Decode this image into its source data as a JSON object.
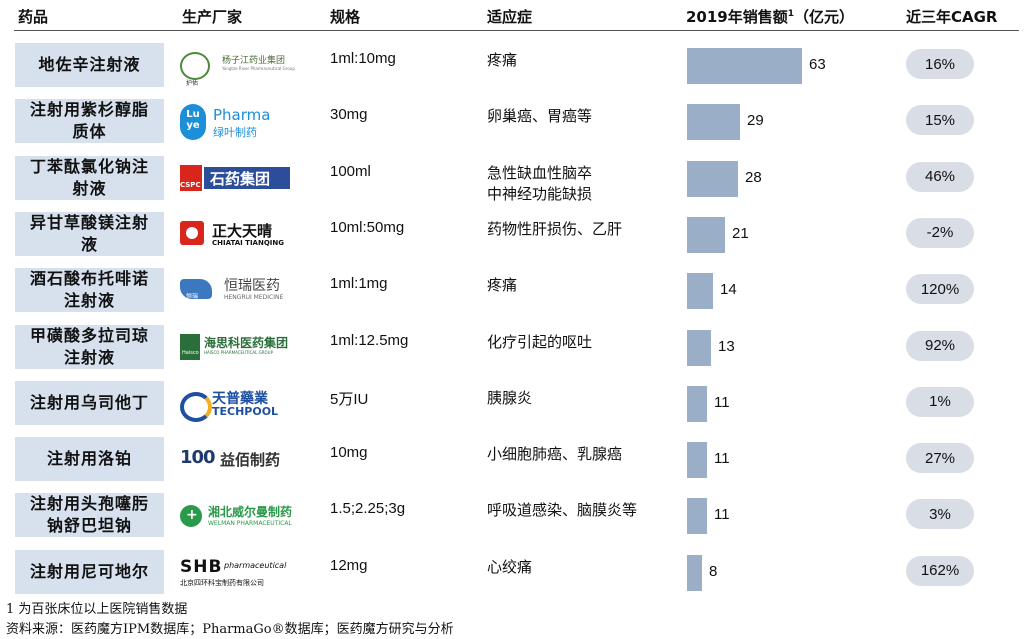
{
  "headers": {
    "drug": "药品",
    "maker": "生产厂家",
    "spec": "规格",
    "indication": "适应症",
    "sales_prefix": "2019年销售额",
    "sales_sup": "1",
    "sales_suffix": "（亿元）",
    "cagr": "近三年CAGR"
  },
  "logos": [
    {
      "text": "杨子江药业集团",
      "sub": "Yangtze River Pharmaceutical Group",
      "tag": "护佑"
    },
    {
      "text": "Pharma",
      "sub": "绿叶制药",
      "mark": "Lu ye"
    },
    {
      "text": "石药集团",
      "mark": "CSPC"
    },
    {
      "text": "正大天晴",
      "sub": "CHIATAI TIANQING"
    },
    {
      "text": "恒瑞医药",
      "sub": "HENGRUI MEDICINE",
      "mark": "恒瑞"
    },
    {
      "text": "海思科医药集团",
      "sub": "HAISCO PHARMACEUTICAL GROUP",
      "mark": "Haisco"
    },
    {
      "text": "天普藥業",
      "sub": "TECHPOOL"
    },
    {
      "text": "益佰制药",
      "mark": "100"
    },
    {
      "text": "湘北威尔曼制药",
      "sub": "WELMAN PHARMACEUTICAL"
    },
    {
      "text": "pharmaceutical",
      "sub": "北京四环科宝制药有限公司",
      "mark": "SHB"
    }
  ],
  "rows": [
    {
      "name": "地佐辛注射液",
      "spec": "1ml:10mg",
      "indication": [
        "疼痛"
      ],
      "sales": 63,
      "cagr": "16%"
    },
    {
      "name": "注射用紫杉醇脂质体",
      "spec": "30mg",
      "indication": [
        "卵巢癌、胃癌等"
      ],
      "sales": 29,
      "cagr": "15%"
    },
    {
      "name": "丁苯酞氯化钠注射液",
      "spec": "100ml",
      "indication": [
        "急性缺血性脑卒",
        "中神经功能缺损"
      ],
      "sales": 28,
      "cagr": "46%"
    },
    {
      "name": "异甘草酸镁注射液",
      "spec": "10ml:50mg",
      "indication": [
        "药物性肝损伤、乙肝"
      ],
      "sales": 21,
      "cagr": "-2%"
    },
    {
      "name": "酒石酸布托啡诺注射液",
      "spec": "1ml:1mg",
      "indication": [
        "疼痛"
      ],
      "sales": 14,
      "cagr": "120%"
    },
    {
      "name": "甲磺酸多拉司琼注射液",
      "spec": "1ml:12.5mg",
      "indication": [
        "化疗引起的呕吐"
      ],
      "sales": 13,
      "cagr": "92%"
    },
    {
      "name": "注射用乌司他丁",
      "spec": "5万IU",
      "indication": [
        "胰腺炎"
      ],
      "sales": 11,
      "cagr": "1%"
    },
    {
      "name": "注射用洛铂",
      "spec": "10mg",
      "indication": [
        "小细胞肺癌、乳腺癌"
      ],
      "sales": 11,
      "cagr": "27%"
    },
    {
      "name": "注射用头孢噻肟钠舒巴坦钠",
      "spec": "1.5;2.25;3g",
      "indication": [
        "呼吸道感染、脑膜炎等"
      ],
      "sales": 11,
      "cagr": "3%"
    },
    {
      "name": "注射用尼可地尔",
      "spec": "12mg",
      "indication": [
        "心绞痛"
      ],
      "sales": 8,
      "cagr": "162%"
    }
  ],
  "chart_data": {
    "type": "bar",
    "categories": [
      "地佐辛注射液",
      "注射用紫杉醇脂质体",
      "丁苯酞氯化钠注射液",
      "异甘草酸镁注射液",
      "酒石酸布托啡诺注射液",
      "甲磺酸多拉司琼注射液",
      "注射用乌司他丁",
      "注射用洛铂",
      "注射用头孢噻肟钠舒巴坦钠",
      "注射用尼可地尔"
    ],
    "values": [
      63,
      29,
      28,
      21,
      14,
      13,
      11,
      11,
      11,
      8
    ],
    "ylabel": "2019年销售额（亿元）"
  },
  "footnotes": {
    "n1_sup": "1",
    "n1": "为百张床位以上医院销售数据",
    "source": "资料来源：医药魔方IPM数据库；PharmaGo®数据库；医药魔方研究与分析"
  },
  "colors": {
    "name_bg": "#d7e1ee",
    "bar": "#9aaec8",
    "pill": "#d8dde6"
  }
}
